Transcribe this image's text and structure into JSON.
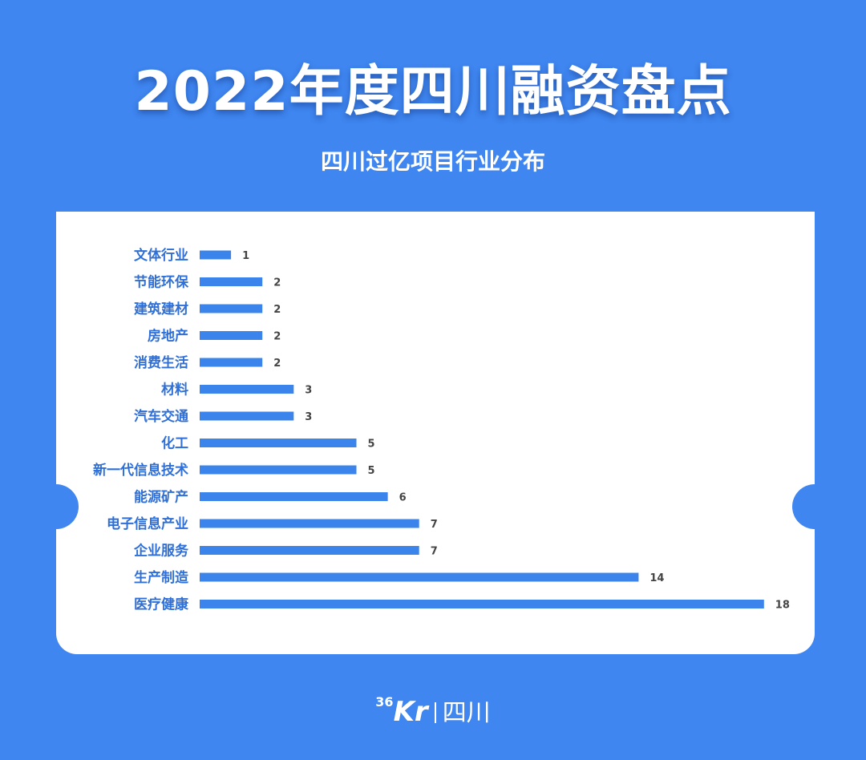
{
  "title": "2022年度四川融资盘点",
  "footer": {
    "logo_number": "36",
    "logo_letters": "Kr",
    "region": "四川"
  },
  "colors": {
    "background": "#3f86f0",
    "bar": "#3a84ec",
    "label": "#2f6fd6",
    "value": "#444444"
  },
  "chart_data": {
    "type": "bar",
    "orientation": "horizontal",
    "title": "四川过亿项目行业分布",
    "xlabel": "",
    "ylabel": "",
    "xlim": [
      0,
      18
    ],
    "grid": false,
    "categories": [
      "文体行业",
      "节能环保",
      "建筑建材",
      "房地产",
      "消费生活",
      "材料",
      "汽车交通",
      "化工",
      "新一代信息技术",
      "能源矿产",
      "电子信息产业",
      "企业服务",
      "生产制造",
      "医疗健康"
    ],
    "values": [
      1,
      2,
      2,
      2,
      2,
      3,
      3,
      5,
      5,
      6,
      7,
      7,
      14,
      18
    ]
  }
}
